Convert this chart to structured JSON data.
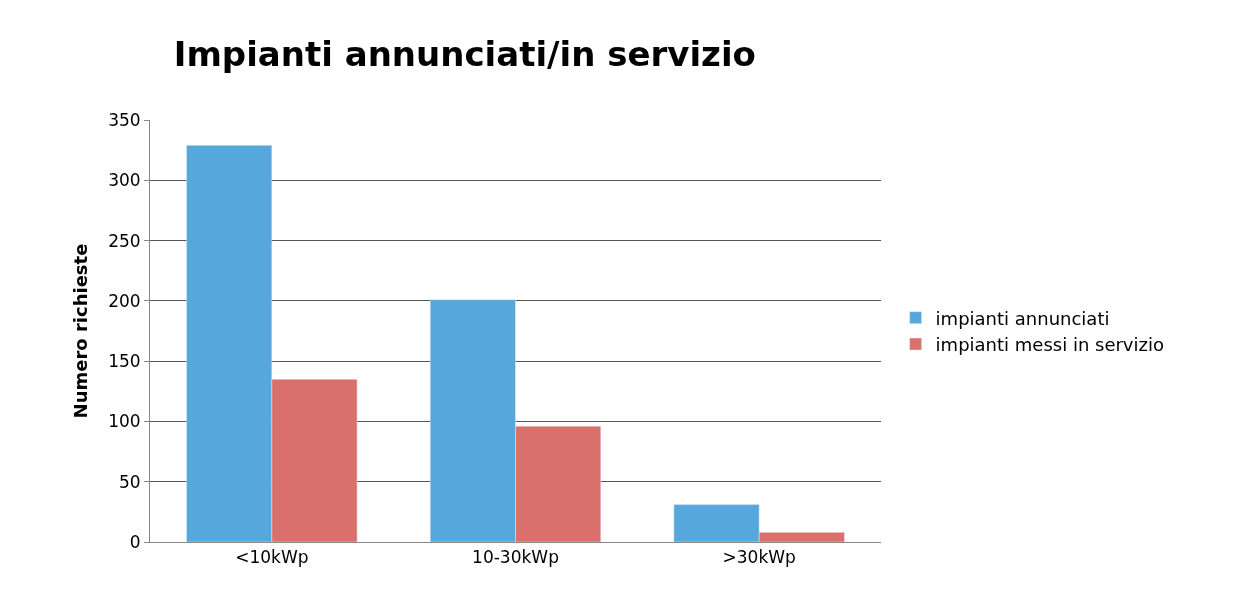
{
  "chart_data": {
    "type": "bar",
    "title": "Impianti annunciati/in servizio",
    "ylabel": "Numero richieste",
    "categories": [
      "<10kWp",
      "10-30kWp",
      ">30kWp"
    ],
    "series": [
      {
        "name": "impianti annunciati",
        "color": "#56a7dc",
        "values": [
          329,
          201,
          31
        ]
      },
      {
        "name": "impianti messi in servizio",
        "color": "#d9706b",
        "values": [
          135,
          96,
          8
        ]
      }
    ],
    "ylim": [
      0,
      350
    ],
    "yticks": [
      0,
      50,
      100,
      150,
      200,
      250,
      300,
      350
    ],
    "grid": "y",
    "legend": "right"
  }
}
